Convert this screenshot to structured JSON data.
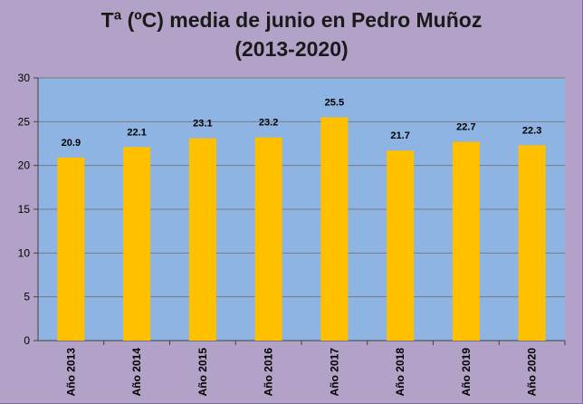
{
  "chart_data": {
    "type": "bar",
    "title_line1": "Tª (ºC) media de junio en Pedro Muñoz",
    "title_line2": "(2013-2020)",
    "categories": [
      "Año 2013",
      "Año 2014",
      "Año 2015",
      "Año 2016",
      "Año 2017",
      "Año 2018",
      "Año 2019",
      "Año 2020"
    ],
    "values": [
      20.9,
      22.1,
      23.1,
      23.2,
      25.5,
      21.7,
      22.7,
      22.3
    ],
    "value_labels": [
      "20.9",
      "22.1",
      "23.1",
      "23.2",
      "25.5",
      "21.7",
      "22.7",
      "22.3"
    ],
    "ylim": [
      0,
      30
    ],
    "yticks": [
      0,
      5,
      10,
      15,
      20,
      25,
      30
    ],
    "grid": true,
    "legend": "none",
    "colors": {
      "bar": "#ffc000",
      "plot_area": "#8eb4e3",
      "chart_area": "#b3a2c7",
      "gridline": "#7a7a7a"
    }
  }
}
